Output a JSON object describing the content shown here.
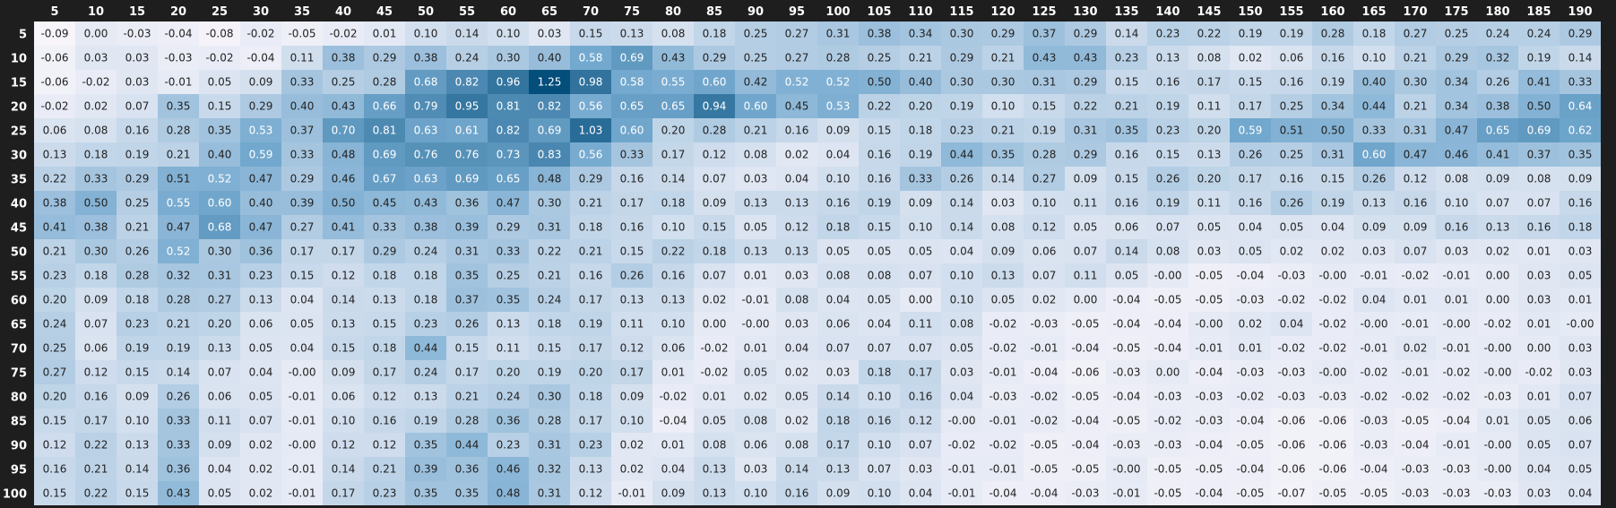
{
  "chart_data": {
    "type": "heatmap",
    "columns": [
      "5",
      "10",
      "15",
      "20",
      "25",
      "30",
      "35",
      "40",
      "45",
      "50",
      "55",
      "60",
      "65",
      "70",
      "75",
      "80",
      "85",
      "90",
      "95",
      "100",
      "105",
      "110",
      "115",
      "120",
      "125",
      "130",
      "135",
      "140",
      "145",
      "150",
      "155",
      "160",
      "165",
      "170",
      "175",
      "180",
      "185",
      "190"
    ],
    "rows": [
      "5",
      "10",
      "15",
      "20",
      "25",
      "30",
      "35",
      "40",
      "45",
      "50",
      "55",
      "60",
      "65",
      "70",
      "75",
      "80",
      "85",
      "90",
      "95",
      "100"
    ],
    "values": [
      [
        "-0.09",
        "0.00",
        "-0.03",
        "-0.04",
        "-0.08",
        "-0.02",
        "-0.05",
        "-0.02",
        "0.01",
        "0.10",
        "0.14",
        "0.10",
        "0.03",
        "0.15",
        "0.13",
        "0.08",
        "0.18",
        "0.25",
        "0.27",
        "0.31",
        "0.38",
        "0.34",
        "0.30",
        "0.29",
        "0.37",
        "0.29",
        "0.14",
        "0.23",
        "0.22",
        "0.19",
        "0.19",
        "0.28",
        "0.18",
        "0.27",
        "0.25",
        "0.24",
        "0.24",
        "0.29"
      ],
      [
        "-0.06",
        "0.03",
        "0.03",
        "-0.03",
        "-0.02",
        "-0.04",
        "0.11",
        "0.38",
        "0.29",
        "0.38",
        "0.24",
        "0.30",
        "0.40",
        "0.58",
        "0.69",
        "0.43",
        "0.29",
        "0.25",
        "0.27",
        "0.28",
        "0.25",
        "0.21",
        "0.29",
        "0.21",
        "0.43",
        "0.43",
        "0.23",
        "0.13",
        "0.08",
        "0.02",
        "0.06",
        "0.16",
        "0.10",
        "0.21",
        "0.29",
        "0.32",
        "0.19",
        "0.14"
      ],
      [
        "-0.06",
        "-0.02",
        "0.03",
        "-0.01",
        "0.05",
        "0.09",
        "0.33",
        "0.25",
        "0.28",
        "0.68",
        "0.82",
        "0.96",
        "1.25",
        "0.98",
        "0.58",
        "0.55",
        "0.60",
        "0.42",
        "0.52",
        "0.52",
        "0.50",
        "0.40",
        "0.30",
        "0.30",
        "0.31",
        "0.29",
        "0.15",
        "0.16",
        "0.17",
        "0.15",
        "0.16",
        "0.19",
        "0.40",
        "0.30",
        "0.34",
        "0.26",
        "0.41",
        "0.33"
      ],
      [
        "-0.02",
        "0.02",
        "0.07",
        "0.35",
        "0.15",
        "0.29",
        "0.40",
        "0.43",
        "0.66",
        "0.79",
        "0.95",
        "0.81",
        "0.82",
        "0.56",
        "0.65",
        "0.65",
        "0.94",
        "0.60",
        "0.45",
        "0.53",
        "0.22",
        "0.20",
        "0.19",
        "0.10",
        "0.15",
        "0.22",
        "0.21",
        "0.19",
        "0.11",
        "0.17",
        "0.25",
        "0.34",
        "0.44",
        "0.21",
        "0.34",
        "0.38",
        "0.50",
        "0.64"
      ],
      [
        "0.06",
        "0.08",
        "0.16",
        "0.28",
        "0.35",
        "0.53",
        "0.37",
        "0.70",
        "0.81",
        "0.63",
        "0.61",
        "0.82",
        "0.69",
        "1.03",
        "0.60",
        "0.20",
        "0.28",
        "0.21",
        "0.16",
        "0.09",
        "0.15",
        "0.18",
        "0.23",
        "0.21",
        "0.19",
        "0.31",
        "0.35",
        "0.23",
        "0.20",
        "0.59",
        "0.51",
        "0.50",
        "0.33",
        "0.31",
        "0.47",
        "0.65",
        "0.69",
        "0.62"
      ],
      [
        "0.13",
        "0.18",
        "0.19",
        "0.21",
        "0.40",
        "0.59",
        "0.33",
        "0.48",
        "0.69",
        "0.76",
        "0.76",
        "0.73",
        "0.83",
        "0.56",
        "0.33",
        "0.17",
        "0.12",
        "0.08",
        "0.02",
        "0.04",
        "0.16",
        "0.19",
        "0.44",
        "0.35",
        "0.28",
        "0.29",
        "0.16",
        "0.15",
        "0.13",
        "0.26",
        "0.25",
        "0.31",
        "0.60",
        "0.47",
        "0.46",
        "0.41",
        "0.37",
        "0.35"
      ],
      [
        "0.22",
        "0.33",
        "0.29",
        "0.51",
        "0.52",
        "0.47",
        "0.29",
        "0.46",
        "0.67",
        "0.63",
        "0.69",
        "0.65",
        "0.48",
        "0.29",
        "0.16",
        "0.14",
        "0.07",
        "0.03",
        "0.04",
        "0.10",
        "0.16",
        "0.33",
        "0.26",
        "0.14",
        "0.27",
        "0.09",
        "0.15",
        "0.26",
        "0.20",
        "0.17",
        "0.16",
        "0.15",
        "0.26",
        "0.12",
        "0.08",
        "0.09",
        "0.08",
        "0.09"
      ],
      [
        "0.38",
        "0.50",
        "0.25",
        "0.55",
        "0.60",
        "0.40",
        "0.39",
        "0.50",
        "0.45",
        "0.43",
        "0.36",
        "0.47",
        "0.30",
        "0.21",
        "0.17",
        "0.18",
        "0.09",
        "0.13",
        "0.13",
        "0.16",
        "0.19",
        "0.09",
        "0.14",
        "0.03",
        "0.10",
        "0.11",
        "0.16",
        "0.19",
        "0.11",
        "0.16",
        "0.26",
        "0.19",
        "0.13",
        "0.16",
        "0.10",
        "0.07",
        "0.07",
        "0.16"
      ],
      [
        "0.41",
        "0.38",
        "0.21",
        "0.47",
        "0.68",
        "0.47",
        "0.27",
        "0.41",
        "0.33",
        "0.38",
        "0.39",
        "0.29",
        "0.31",
        "0.18",
        "0.16",
        "0.10",
        "0.15",
        "0.05",
        "0.12",
        "0.18",
        "0.15",
        "0.10",
        "0.14",
        "0.08",
        "0.12",
        "0.05",
        "0.06",
        "0.07",
        "0.05",
        "0.04",
        "0.05",
        "0.04",
        "0.09",
        "0.09",
        "0.16",
        "0.13",
        "0.16",
        "0.18"
      ],
      [
        "0.21",
        "0.30",
        "0.26",
        "0.52",
        "0.30",
        "0.36",
        "0.17",
        "0.17",
        "0.29",
        "0.24",
        "0.31",
        "0.33",
        "0.22",
        "0.21",
        "0.15",
        "0.22",
        "0.18",
        "0.13",
        "0.13",
        "0.05",
        "0.05",
        "0.05",
        "0.04",
        "0.09",
        "0.06",
        "0.07",
        "0.14",
        "0.08",
        "0.03",
        "0.05",
        "0.02",
        "0.02",
        "0.03",
        "0.07",
        "0.03",
        "0.02",
        "0.01",
        "0.03"
      ],
      [
        "0.23",
        "0.18",
        "0.28",
        "0.32",
        "0.31",
        "0.23",
        "0.15",
        "0.12",
        "0.18",
        "0.18",
        "0.35",
        "0.25",
        "0.21",
        "0.16",
        "0.26",
        "0.16",
        "0.07",
        "0.01",
        "0.03",
        "0.08",
        "0.08",
        "0.07",
        "0.10",
        "0.13",
        "0.07",
        "0.11",
        "0.05",
        "-0.00",
        "-0.05",
        "-0.04",
        "-0.03",
        "-0.00",
        "-0.01",
        "-0.02",
        "-0.01",
        "0.00",
        "0.03",
        "0.05"
      ],
      [
        "0.20",
        "0.09",
        "0.18",
        "0.28",
        "0.27",
        "0.13",
        "0.04",
        "0.14",
        "0.13",
        "0.18",
        "0.37",
        "0.35",
        "0.24",
        "0.17",
        "0.13",
        "0.13",
        "0.02",
        "-0.01",
        "0.08",
        "0.04",
        "0.05",
        "0.00",
        "0.10",
        "0.05",
        "0.02",
        "0.00",
        "-0.04",
        "-0.05",
        "-0.05",
        "-0.03",
        "-0.02",
        "-0.02",
        "0.04",
        "0.01",
        "0.01",
        "0.00",
        "0.03",
        "0.01"
      ],
      [
        "0.24",
        "0.07",
        "0.23",
        "0.21",
        "0.20",
        "0.06",
        "0.05",
        "0.13",
        "0.15",
        "0.23",
        "0.26",
        "0.13",
        "0.18",
        "0.19",
        "0.11",
        "0.10",
        "0.00",
        "-0.00",
        "0.03",
        "0.06",
        "0.04",
        "0.11",
        "0.08",
        "-0.02",
        "-0.03",
        "-0.05",
        "-0.04",
        "-0.04",
        "-0.00",
        "0.02",
        "0.04",
        "-0.02",
        "-0.00",
        "-0.01",
        "-0.00",
        "-0.02",
        "0.01",
        "-0.00"
      ],
      [
        "0.25",
        "0.06",
        "0.19",
        "0.19",
        "0.13",
        "0.05",
        "0.04",
        "0.15",
        "0.18",
        "0.44",
        "0.15",
        "0.11",
        "0.15",
        "0.17",
        "0.12",
        "0.06",
        "-0.02",
        "0.01",
        "0.04",
        "0.07",
        "0.07",
        "0.07",
        "0.05",
        "-0.02",
        "-0.01",
        "-0.04",
        "-0.05",
        "-0.04",
        "-0.01",
        "0.01",
        "-0.02",
        "-0.02",
        "-0.01",
        "0.02",
        "-0.01",
        "-0.00",
        "0.00",
        "0.03"
      ],
      [
        "0.27",
        "0.12",
        "0.15",
        "0.14",
        "0.07",
        "0.04",
        "-0.00",
        "0.09",
        "0.17",
        "0.24",
        "0.17",
        "0.20",
        "0.19",
        "0.20",
        "0.17",
        "0.01",
        "-0.02",
        "0.05",
        "0.02",
        "0.03",
        "0.18",
        "0.17",
        "0.03",
        "-0.01",
        "-0.04",
        "-0.06",
        "-0.03",
        "0.00",
        "-0.04",
        "-0.03",
        "-0.03",
        "-0.00",
        "-0.02",
        "-0.01",
        "-0.02",
        "-0.00",
        "-0.02",
        "0.03"
      ],
      [
        "0.20",
        "0.16",
        "0.09",
        "0.26",
        "0.06",
        "0.05",
        "-0.01",
        "0.06",
        "0.12",
        "0.13",
        "0.21",
        "0.24",
        "0.30",
        "0.18",
        "0.09",
        "-0.02",
        "0.01",
        "0.02",
        "0.05",
        "0.14",
        "0.10",
        "0.16",
        "0.04",
        "-0.03",
        "-0.02",
        "-0.05",
        "-0.04",
        "-0.03",
        "-0.03",
        "-0.02",
        "-0.03",
        "-0.03",
        "-0.02",
        "-0.02",
        "-0.02",
        "-0.03",
        "0.01",
        "0.07"
      ],
      [
        "0.15",
        "0.17",
        "0.10",
        "0.33",
        "0.11",
        "0.07",
        "-0.01",
        "0.10",
        "0.16",
        "0.19",
        "0.28",
        "0.36",
        "0.28",
        "0.17",
        "0.10",
        "-0.04",
        "0.05",
        "0.08",
        "0.02",
        "0.18",
        "0.16",
        "0.12",
        "-0.00",
        "-0.01",
        "-0.02",
        "-0.04",
        "-0.05",
        "-0.02",
        "-0.03",
        "-0.04",
        "-0.06",
        "-0.06",
        "-0.03",
        "-0.05",
        "-0.04",
        "0.01",
        "0.05",
        "0.06"
      ],
      [
        "0.12",
        "0.22",
        "0.13",
        "0.33",
        "0.09",
        "0.02",
        "-0.00",
        "0.12",
        "0.12",
        "0.35",
        "0.44",
        "0.23",
        "0.31",
        "0.23",
        "0.02",
        "0.01",
        "0.08",
        "0.06",
        "0.08",
        "0.17",
        "0.10",
        "0.07",
        "-0.02",
        "-0.02",
        "-0.05",
        "-0.04",
        "-0.03",
        "-0.03",
        "-0.04",
        "-0.05",
        "-0.06",
        "-0.06",
        "-0.03",
        "-0.04",
        "-0.01",
        "-0.00",
        "0.05",
        "0.07"
      ],
      [
        "0.16",
        "0.21",
        "0.14",
        "0.36",
        "0.04",
        "0.02",
        "-0.01",
        "0.14",
        "0.21",
        "0.39",
        "0.36",
        "0.46",
        "0.32",
        "0.13",
        "0.02",
        "0.04",
        "0.13",
        "0.03",
        "0.14",
        "0.13",
        "0.07",
        "0.03",
        "-0.01",
        "-0.01",
        "-0.05",
        "-0.05",
        "-0.00",
        "-0.05",
        "-0.05",
        "-0.04",
        "-0.06",
        "-0.06",
        "-0.04",
        "-0.03",
        "-0.03",
        "-0.00",
        "0.04",
        "0.05"
      ],
      [
        "0.15",
        "0.22",
        "0.15",
        "0.43",
        "0.05",
        "0.02",
        "-0.01",
        "0.17",
        "0.23",
        "0.35",
        "0.35",
        "0.48",
        "0.31",
        "0.12",
        "-0.01",
        "0.09",
        "0.13",
        "0.10",
        "0.16",
        "0.09",
        "0.10",
        "0.04",
        "-0.01",
        "-0.04",
        "-0.04",
        "-0.03",
        "-0.01",
        "-0.05",
        "-0.04",
        "-0.05",
        "-0.07",
        "-0.05",
        "-0.05",
        "-0.03",
        "-0.03",
        "-0.03",
        "0.03",
        "0.04"
      ]
    ],
    "cmap": {
      "low_color": "#f7f4fa",
      "high_color": "#034e7b",
      "vmin": -0.09,
      "vmax": 1.25
    },
    "title": "",
    "xlabel": "",
    "ylabel": "",
    "header_text_color": "#ffffff",
    "background_color": "#1e1e1e"
  }
}
